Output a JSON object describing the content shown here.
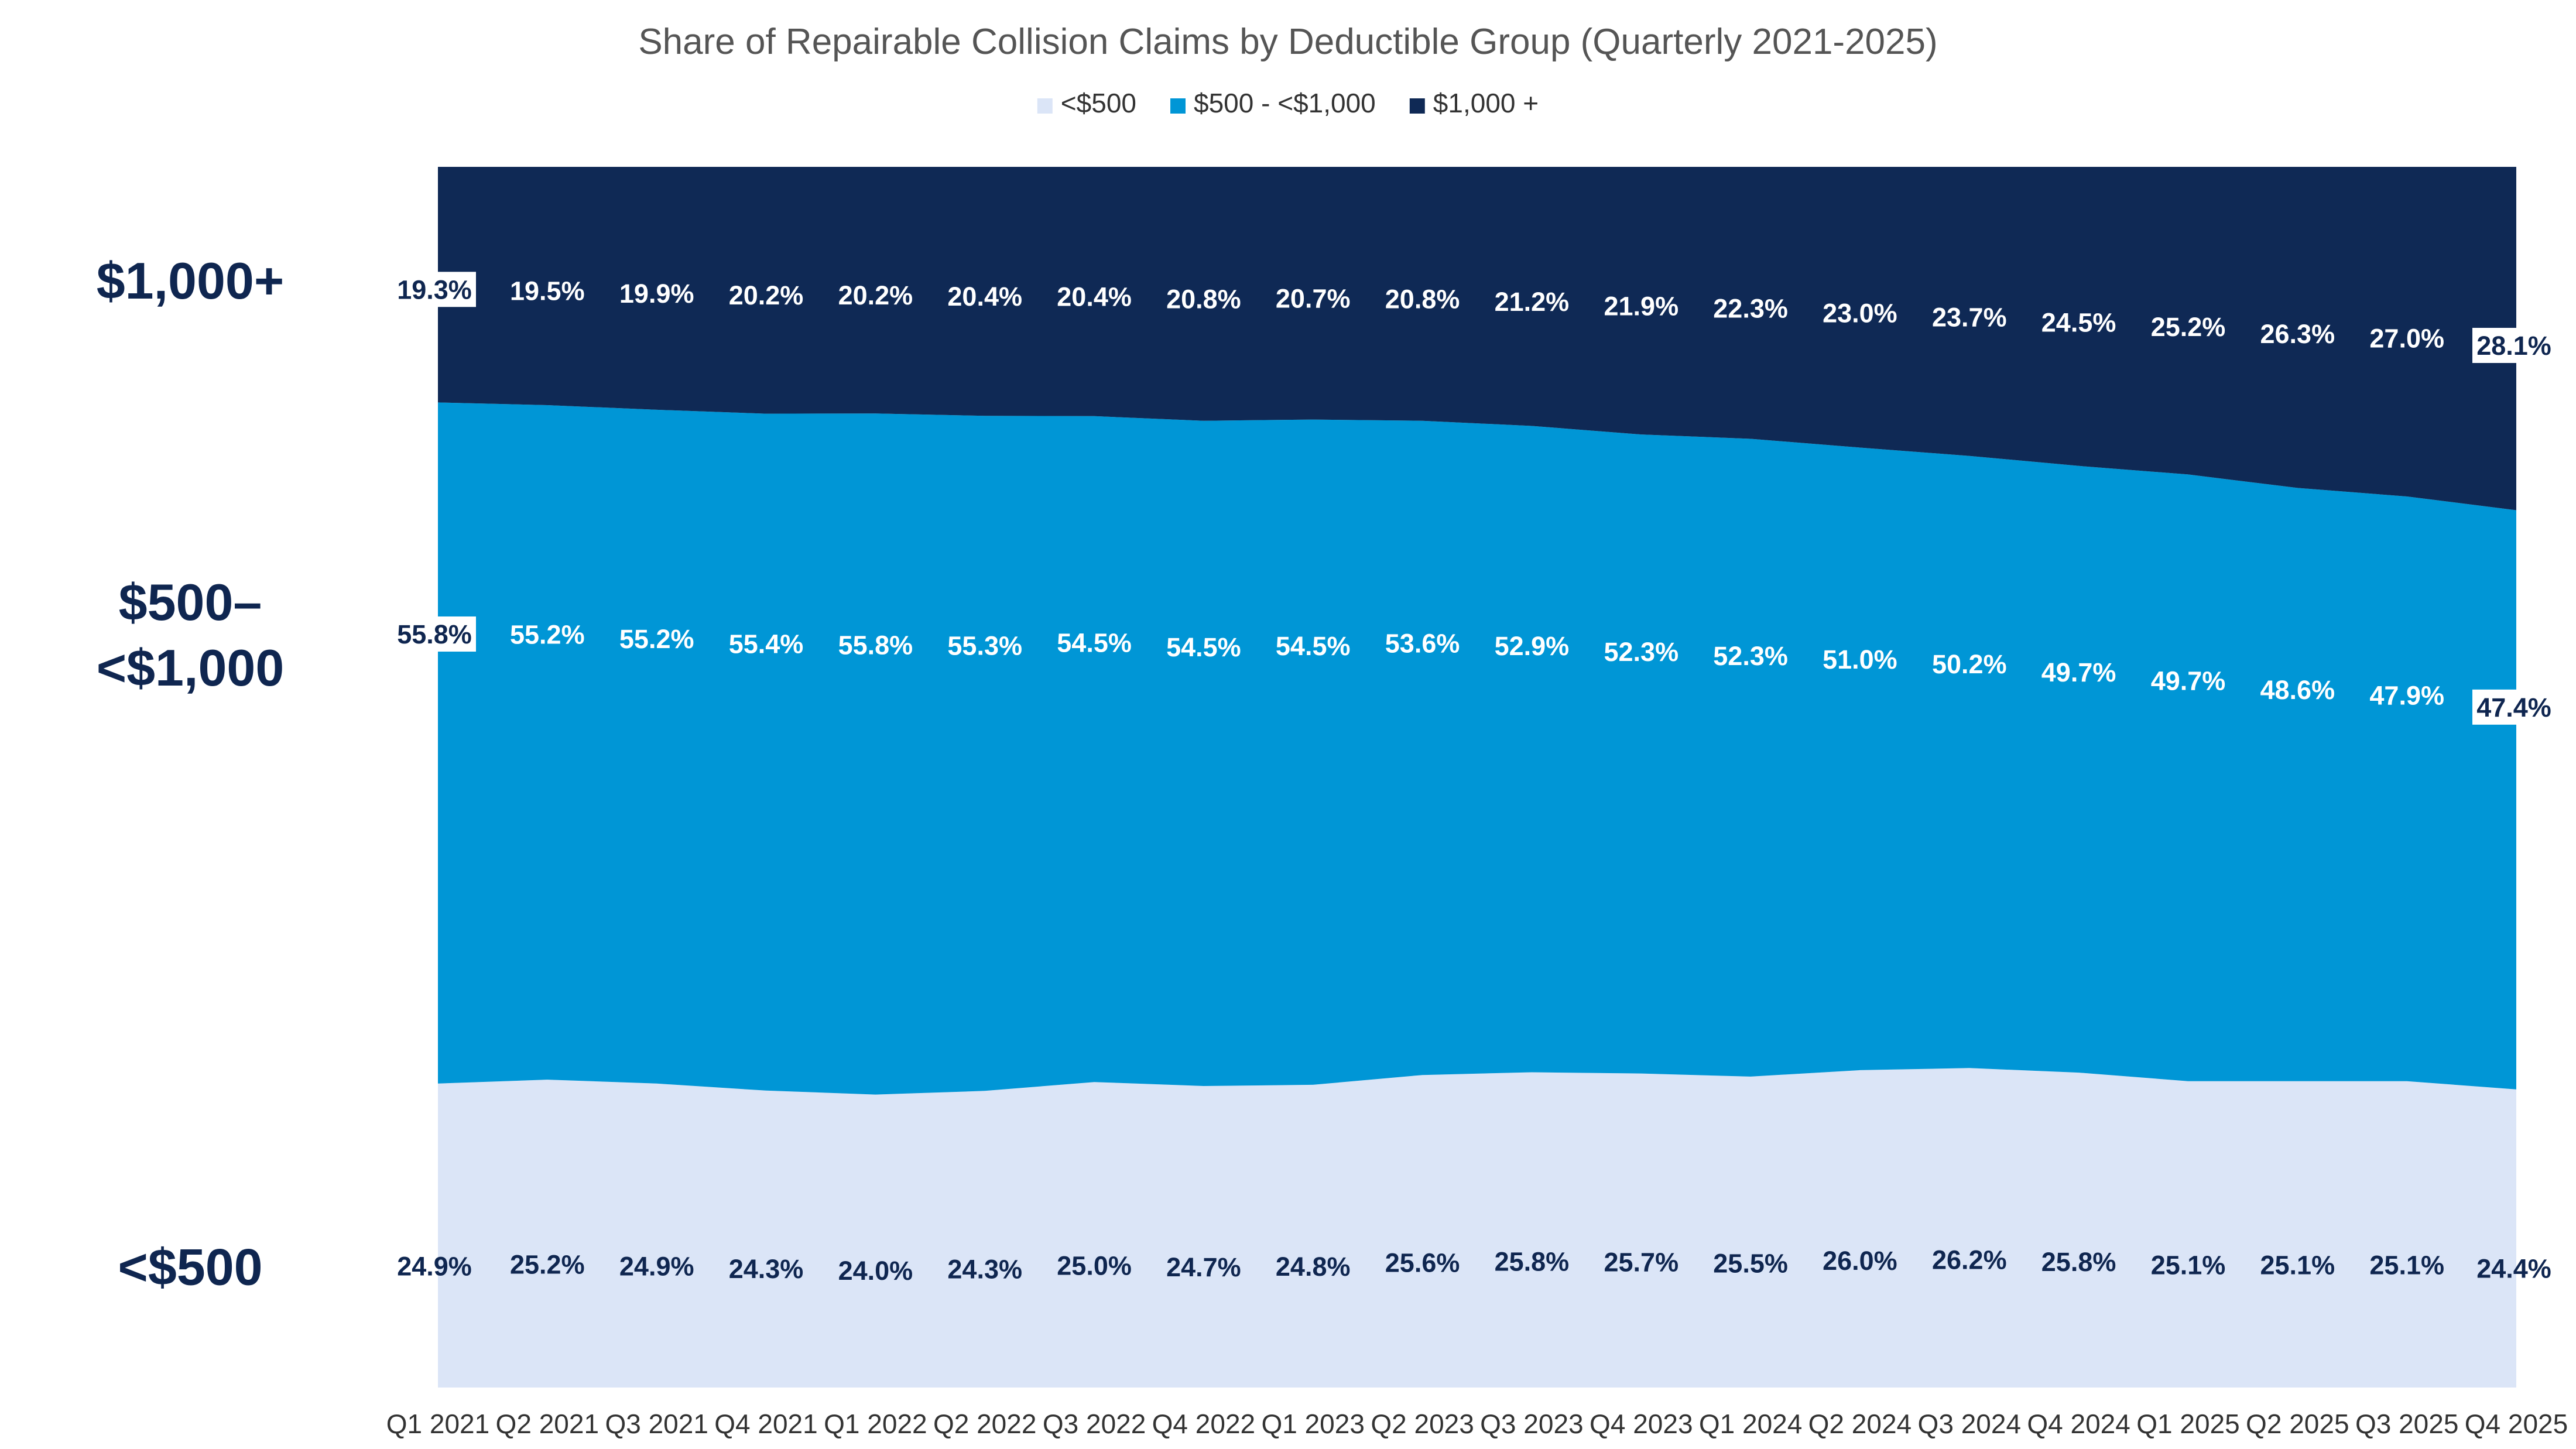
{
  "chart_data": {
    "type": "area",
    "stacked": true,
    "percent_stacked": true,
    "title": "Share of Repairable Collision Claims by Deductible Group (Quarterly 2021-2025)",
    "legend_position": "top-center",
    "categories": [
      "Q1 2021",
      "Q2 2021",
      "Q3 2021",
      "Q4 2021",
      "Q1 2022",
      "Q2 2022",
      "Q3 2022",
      "Q4 2022",
      "Q1 2023",
      "Q2 2023",
      "Q3 2023",
      "Q4 2023",
      "Q1 2024",
      "Q2 2024",
      "Q3 2024",
      "Q4 2024",
      "Q1 2025",
      "Q2 2025",
      "Q3 2025",
      "Q4 2025"
    ],
    "series": [
      {
        "name": "<$500",
        "color": "#dbe5f7",
        "label_color": "#0f2650",
        "values": [
          24.9,
          25.2,
          24.9,
          24.3,
          24.0,
          24.3,
          25.0,
          24.7,
          24.8,
          25.6,
          25.8,
          25.7,
          25.5,
          26.0,
          26.2,
          25.8,
          25.1,
          25.1,
          25.1,
          24.4
        ]
      },
      {
        "name": "$500 - <$1,000",
        "color": "#0096d6",
        "label_color": "#ffffff",
        "values": [
          55.8,
          55.2,
          55.2,
          55.4,
          55.8,
          55.3,
          54.5,
          54.5,
          54.5,
          53.6,
          52.9,
          52.3,
          52.3,
          51.0,
          50.2,
          49.7,
          49.7,
          48.6,
          47.9,
          47.4
        ]
      },
      {
        "name": "$1,000 +",
        "color": "#0f2955",
        "label_color": "#ffffff",
        "values": [
          19.3,
          19.5,
          19.9,
          20.2,
          20.2,
          20.4,
          20.4,
          20.8,
          20.7,
          20.8,
          21.2,
          21.9,
          22.3,
          23.0,
          23.7,
          24.5,
          25.2,
          26.3,
          27.0,
          28.1
        ]
      }
    ],
    "side_labels": [
      {
        "series": 2,
        "lines": [
          "$1,000+"
        ]
      },
      {
        "series": 1,
        "lines": [
          "$500–",
          "<$1,000"
        ]
      },
      {
        "series": 0,
        "lines": [
          "<$500"
        ]
      }
    ],
    "ylim": [
      0,
      100
    ],
    "grid": false
  }
}
